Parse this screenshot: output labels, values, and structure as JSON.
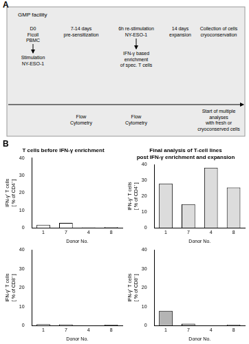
{
  "panel_a": {
    "label": "A",
    "facility": "GMP facility",
    "top_texts": [
      [
        "D0",
        "Ficoll",
        "PBMC"
      ],
      [
        "7-14 days",
        "pre-sensitization"
      ],
      [
        "6h re-stimulation",
        "NY-ESO-1"
      ],
      [
        "14 days",
        "expansion"
      ],
      [
        "Collection of cells",
        "cryoconservation"
      ]
    ],
    "arrow_texts": [
      [
        "Stimulation",
        "NY-ESO-1"
      ],
      [
        "IFN-γ based",
        "enrichment",
        "of spec. T cells"
      ]
    ],
    "bottom_texts": [
      [
        "Flow",
        "Cytometry"
      ],
      [
        "Flow",
        "Cytometry"
      ],
      [
        "Start of multiple",
        "analyses",
        "with fresh or",
        "cryoconserved cells"
      ]
    ]
  },
  "panel_b": {
    "label": "B"
  },
  "chart_data": [
    {
      "type": "bar",
      "title": [
        "T cells before IFN-γ enrichment"
      ],
      "ylabel": [
        "IFN-γ⁺ T cells",
        "[ % of CD4⁺ ]"
      ],
      "xlabel": "Donor No.",
      "categories": [
        "1",
        "7",
        "4",
        "8"
      ],
      "values": [
        1.8,
        2.8,
        0.3,
        0.5
      ],
      "color": "#ffffff",
      "ylim": [
        0,
        40
      ],
      "yticks": [
        0,
        10,
        20,
        30,
        40
      ],
      "grid": false
    },
    {
      "type": "bar",
      "title": [
        "Final analysis of T-cell lines",
        "post IFN-γ enrichment and expansion"
      ],
      "ylabel": [
        "IFN-γ⁺ T cells",
        "[ % of CD4⁺ ]"
      ],
      "xlabel": "Donor No.",
      "categories": [
        "1",
        "7",
        "4",
        "8"
      ],
      "values": [
        28,
        15,
        38,
        25.5
      ],
      "color": "#dcdcdc",
      "ylim": [
        0,
        40
      ],
      "yticks": [
        0,
        10,
        20,
        30,
        40
      ],
      "grid": false
    },
    {
      "type": "bar",
      "ylabel": [
        "IFN-γ⁺ T cells",
        "[ % of CD8⁺ ]"
      ],
      "xlabel": "Donor No.",
      "categories": [
        "1",
        "7",
        "4",
        "8"
      ],
      "values": [
        0.7,
        0.6,
        0.1,
        0.4
      ],
      "color": "#ffffff",
      "ylim": [
        0,
        40
      ],
      "yticks": [
        0,
        10,
        20,
        30,
        40
      ],
      "grid": false
    },
    {
      "type": "bar",
      "ylabel": [
        "IFN-γ⁺ T cells",
        "[ % of CD8⁺ ]"
      ],
      "xlabel": "Donor No.",
      "categories": [
        "1",
        "7",
        "4",
        "8"
      ],
      "values": [
        7.8,
        1.0,
        0,
        0.5
      ],
      "color": "#b4b4b4",
      "ylim": [
        0,
        40
      ],
      "yticks": [
        0,
        10,
        20,
        30,
        40
      ],
      "grid": false
    }
  ]
}
